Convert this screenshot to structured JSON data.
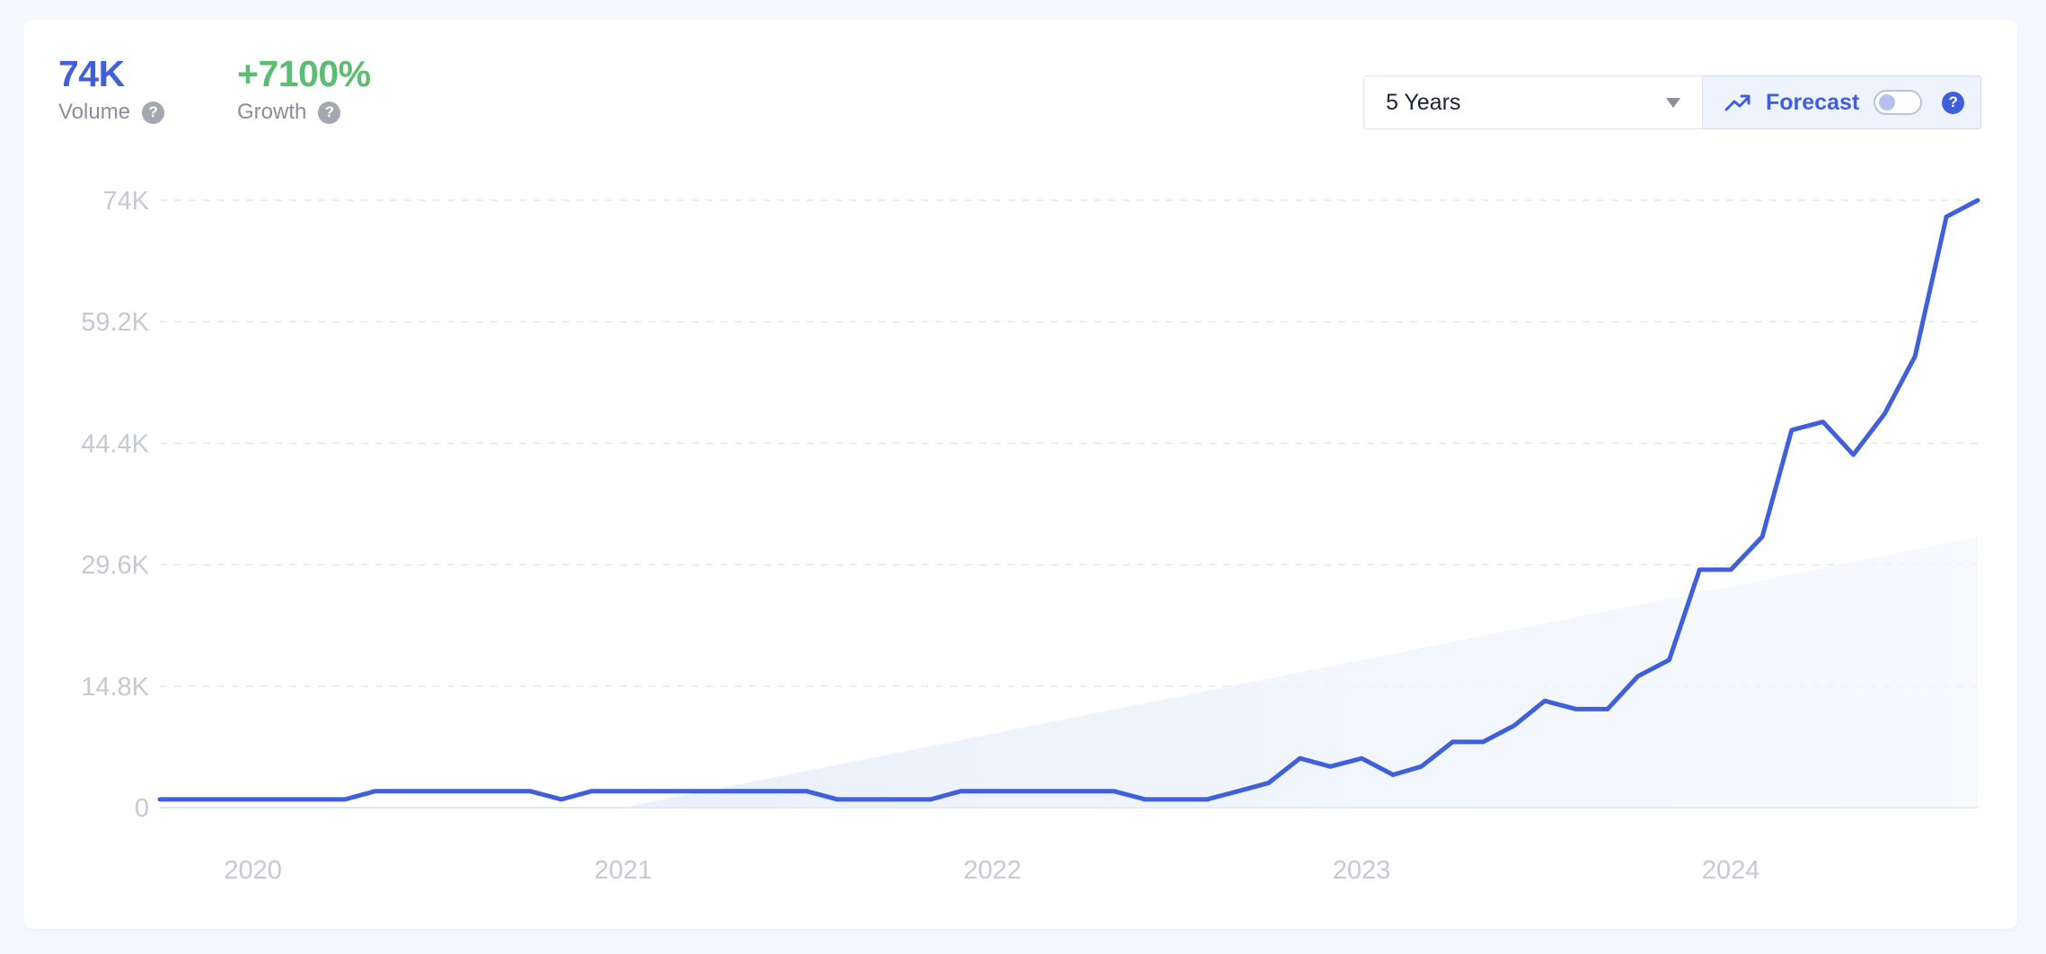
{
  "metrics": {
    "volume": {
      "value": "74K",
      "label": "Volume",
      "color": "#3f5fdc"
    },
    "growth": {
      "value": "+7100%",
      "label": "Growth",
      "color": "#5cbd72"
    }
  },
  "controls": {
    "range_select": {
      "selected": "5 Years"
    },
    "forecast": {
      "label": "Forecast",
      "enabled": false
    }
  },
  "icons": {
    "help": "question-mark-circle-icon",
    "trend": "trending-up-icon",
    "dropdown": "caret-down-icon"
  },
  "chart_data": {
    "type": "line",
    "ylim": [
      0,
      74000
    ],
    "y_ticks": [
      "0",
      "14.8K",
      "29.6K",
      "44.4K",
      "59.2K",
      "74K"
    ],
    "y_tick_values": [
      0,
      14800,
      29600,
      44400,
      59200,
      74000
    ],
    "x_ticks": [
      "2020",
      "2021",
      "2022",
      "2023",
      "2024"
    ],
    "x_tick_dates": [
      "2020-01",
      "2021-01",
      "2022-01",
      "2023-01",
      "2024-01"
    ],
    "grid": "horizontal-dashed",
    "line_color": "#3f5fdc",
    "series": [
      {
        "x": [
          "2019-10",
          "2019-11",
          "2019-12",
          "2020-01",
          "2020-02",
          "2020-03",
          "2020-04",
          "2020-05",
          "2020-06",
          "2020-07",
          "2020-08",
          "2020-09",
          "2020-10",
          "2020-11",
          "2020-12",
          "2021-01",
          "2021-02",
          "2021-03",
          "2021-04",
          "2021-05",
          "2021-06",
          "2021-07",
          "2021-08",
          "2021-09",
          "2021-10",
          "2021-11",
          "2021-12",
          "2022-01",
          "2022-02",
          "2022-03",
          "2022-04",
          "2022-05",
          "2022-06",
          "2022-07",
          "2022-08",
          "2022-09",
          "2022-10",
          "2022-11",
          "2022-12",
          "2023-01",
          "2023-02",
          "2023-03",
          "2023-04",
          "2023-05",
          "2023-06",
          "2023-07",
          "2023-08",
          "2023-09",
          "2023-10",
          "2023-11",
          "2023-12",
          "2024-01",
          "2024-02",
          "2024-03",
          "2024-04",
          "2024-05",
          "2024-06",
          "2024-07",
          "2024-08",
          "2024-09"
        ],
        "values": [
          1000,
          1000,
          1000,
          1000,
          1000,
          1000,
          1000,
          2000,
          2000,
          2000,
          2000,
          2000,
          2000,
          1000,
          2000,
          2000,
          2000,
          2000,
          2000,
          2000,
          2000,
          2000,
          1000,
          1000,
          1000,
          1000,
          2000,
          2000,
          2000,
          2000,
          2000,
          2000,
          1000,
          1000,
          1000,
          2000,
          3000,
          6000,
          5000,
          6000,
          4000,
          5000,
          8000,
          8000,
          10000,
          13000,
          12000,
          12000,
          16000,
          18000,
          29000,
          29000,
          33000,
          46000,
          47000,
          43000,
          48000,
          55000,
          72000,
          74000
        ]
      }
    ],
    "forecast_area": {
      "x_start": "2021-01",
      "x_end": "2024-09",
      "values": [
        0,
        33000
      ]
    }
  }
}
